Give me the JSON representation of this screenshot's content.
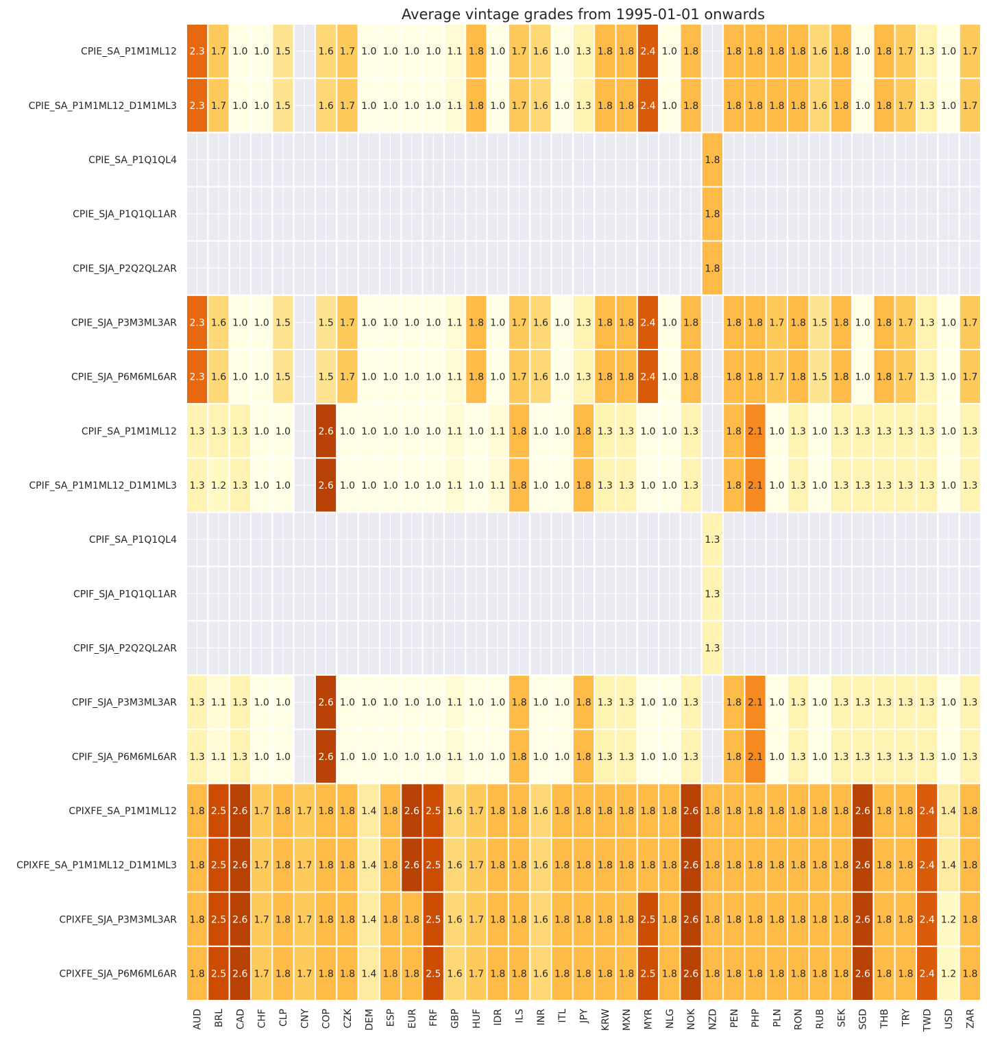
{
  "chart_data": {
    "type": "heatmap",
    "title": "Average vintage grades from 1995-01-01 onwards",
    "xlabel": "",
    "ylabel": "",
    "columns": [
      "AUD",
      "BRL",
      "CAD",
      "CHF",
      "CLP",
      "CNY",
      "COP",
      "CZK",
      "DEM",
      "ESP",
      "EUR",
      "FRF",
      "GBP",
      "HUF",
      "IDR",
      "ILS",
      "INR",
      "ITL",
      "JPY",
      "KRW",
      "MXN",
      "MYR",
      "NLG",
      "NOK",
      "NZD",
      "PEN",
      "PHP",
      "PLN",
      "RON",
      "RUB",
      "SEK",
      "SGD",
      "THB",
      "TRY",
      "TWD",
      "USD",
      "ZAR"
    ],
    "rows": [
      "CPIE_SA_P1M1ML12",
      "CPIE_SA_P1M1ML12_D1M1ML3",
      "CPIE_SA_P1Q1QL4",
      "CPIE_SJA_P1Q1QL1AR",
      "CPIE_SJA_P2Q2QL2AR",
      "CPIE_SJA_P3M3ML3AR",
      "CPIE_SJA_P6M6ML6AR",
      "CPIF_SA_P1M1ML12",
      "CPIF_SA_P1M1ML12_D1M1ML3",
      "CPIF_SA_P1Q1QL4",
      "CPIF_SJA_P1Q1QL1AR",
      "CPIF_SJA_P2Q2QL2AR",
      "CPIF_SJA_P3M3ML3AR",
      "CPIF_SJA_P6M6ML6AR",
      "CPIXFE_SA_P1M1ML12",
      "CPIXFE_SA_P1M1ML12_D1M1ML3",
      "CPIXFE_SJA_P3M3ML3AR",
      "CPIXFE_SJA_P6M6ML6AR"
    ],
    "values": [
      [
        2.3,
        1.7,
        1.0,
        1.0,
        1.5,
        null,
        1.6,
        1.7,
        1.0,
        1.0,
        1.0,
        1.0,
        1.1,
        1.8,
        1.0,
        1.7,
        1.6,
        1.0,
        1.3,
        1.8,
        1.8,
        2.4,
        1.0,
        1.8,
        null,
        1.8,
        1.8,
        1.8,
        1.8,
        1.6,
        1.8,
        1.0,
        1.8,
        1.7,
        1.3,
        1.0,
        1.7
      ],
      [
        2.3,
        1.7,
        1.0,
        1.0,
        1.5,
        null,
        1.6,
        1.7,
        1.0,
        1.0,
        1.0,
        1.0,
        1.1,
        1.8,
        1.0,
        1.7,
        1.6,
        1.0,
        1.3,
        1.8,
        1.8,
        2.4,
        1.0,
        1.8,
        null,
        1.8,
        1.8,
        1.8,
        1.8,
        1.6,
        1.8,
        1.0,
        1.8,
        1.7,
        1.3,
        1.0,
        1.7
      ],
      [
        null,
        null,
        null,
        null,
        null,
        null,
        null,
        null,
        null,
        null,
        null,
        null,
        null,
        null,
        null,
        null,
        null,
        null,
        null,
        null,
        null,
        null,
        null,
        null,
        1.8,
        null,
        null,
        null,
        null,
        null,
        null,
        null,
        null,
        null,
        null,
        null,
        null
      ],
      [
        null,
        null,
        null,
        null,
        null,
        null,
        null,
        null,
        null,
        null,
        null,
        null,
        null,
        null,
        null,
        null,
        null,
        null,
        null,
        null,
        null,
        null,
        null,
        null,
        1.8,
        null,
        null,
        null,
        null,
        null,
        null,
        null,
        null,
        null,
        null,
        null,
        null
      ],
      [
        null,
        null,
        null,
        null,
        null,
        null,
        null,
        null,
        null,
        null,
        null,
        null,
        null,
        null,
        null,
        null,
        null,
        null,
        null,
        null,
        null,
        null,
        null,
        null,
        1.8,
        null,
        null,
        null,
        null,
        null,
        null,
        null,
        null,
        null,
        null,
        null,
        null
      ],
      [
        2.3,
        1.6,
        1.0,
        1.0,
        1.5,
        null,
        1.5,
        1.7,
        1.0,
        1.0,
        1.0,
        1.0,
        1.1,
        1.8,
        1.0,
        1.7,
        1.6,
        1.0,
        1.3,
        1.8,
        1.8,
        2.4,
        1.0,
        1.8,
        null,
        1.8,
        1.8,
        1.7,
        1.8,
        1.5,
        1.8,
        1.0,
        1.8,
        1.7,
        1.3,
        1.0,
        1.7
      ],
      [
        2.3,
        1.6,
        1.0,
        1.0,
        1.5,
        null,
        1.5,
        1.7,
        1.0,
        1.0,
        1.0,
        1.0,
        1.1,
        1.8,
        1.0,
        1.7,
        1.6,
        1.0,
        1.3,
        1.8,
        1.8,
        2.4,
        1.0,
        1.8,
        null,
        1.8,
        1.8,
        1.7,
        1.8,
        1.5,
        1.8,
        1.0,
        1.8,
        1.7,
        1.3,
        1.0,
        1.7
      ],
      [
        1.3,
        1.3,
        1.3,
        1.0,
        1.0,
        null,
        2.6,
        1.0,
        1.0,
        1.0,
        1.0,
        1.0,
        1.1,
        1.0,
        1.1,
        1.8,
        1.0,
        1.0,
        1.8,
        1.3,
        1.3,
        1.0,
        1.0,
        1.3,
        null,
        1.8,
        2.1,
        1.0,
        1.3,
        1.0,
        1.3,
        1.3,
        1.3,
        1.3,
        1.3,
        1.0,
        1.3
      ],
      [
        1.3,
        1.2,
        1.3,
        1.0,
        1.0,
        null,
        2.6,
        1.0,
        1.0,
        1.0,
        1.0,
        1.0,
        1.1,
        1.0,
        1.1,
        1.8,
        1.0,
        1.0,
        1.8,
        1.3,
        1.3,
        1.0,
        1.0,
        1.3,
        null,
        1.8,
        2.1,
        1.0,
        1.3,
        1.0,
        1.3,
        1.3,
        1.3,
        1.3,
        1.3,
        1.0,
        1.3
      ],
      [
        null,
        null,
        null,
        null,
        null,
        null,
        null,
        null,
        null,
        null,
        null,
        null,
        null,
        null,
        null,
        null,
        null,
        null,
        null,
        null,
        null,
        null,
        null,
        null,
        1.3,
        null,
        null,
        null,
        null,
        null,
        null,
        null,
        null,
        null,
        null,
        null,
        null
      ],
      [
        null,
        null,
        null,
        null,
        null,
        null,
        null,
        null,
        null,
        null,
        null,
        null,
        null,
        null,
        null,
        null,
        null,
        null,
        null,
        null,
        null,
        null,
        null,
        null,
        1.3,
        null,
        null,
        null,
        null,
        null,
        null,
        null,
        null,
        null,
        null,
        null,
        null
      ],
      [
        null,
        null,
        null,
        null,
        null,
        null,
        null,
        null,
        null,
        null,
        null,
        null,
        null,
        null,
        null,
        null,
        null,
        null,
        null,
        null,
        null,
        null,
        null,
        null,
        1.3,
        null,
        null,
        null,
        null,
        null,
        null,
        null,
        null,
        null,
        null,
        null,
        null
      ],
      [
        1.3,
        1.1,
        1.3,
        1.0,
        1.0,
        null,
        2.6,
        1.0,
        1.0,
        1.0,
        1.0,
        1.0,
        1.1,
        1.0,
        1.0,
        1.8,
        1.0,
        1.0,
        1.8,
        1.3,
        1.3,
        1.0,
        1.0,
        1.3,
        null,
        1.8,
        2.1,
        1.0,
        1.3,
        1.0,
        1.3,
        1.3,
        1.3,
        1.3,
        1.3,
        1.0,
        1.3
      ],
      [
        1.3,
        1.1,
        1.3,
        1.0,
        1.0,
        null,
        2.6,
        1.0,
        1.0,
        1.0,
        1.0,
        1.0,
        1.1,
        1.0,
        1.0,
        1.8,
        1.0,
        1.0,
        1.8,
        1.3,
        1.3,
        1.0,
        1.0,
        1.3,
        null,
        1.8,
        2.1,
        1.0,
        1.3,
        1.0,
        1.3,
        1.3,
        1.3,
        1.3,
        1.3,
        1.0,
        1.3
      ],
      [
        1.8,
        2.5,
        2.6,
        1.7,
        1.8,
        1.7,
        1.8,
        1.8,
        1.4,
        1.8,
        2.6,
        2.5,
        1.6,
        1.7,
        1.8,
        1.8,
        1.6,
        1.8,
        1.8,
        1.8,
        1.8,
        1.8,
        1.8,
        2.6,
        1.8,
        1.8,
        1.8,
        1.8,
        1.8,
        1.8,
        1.8,
        2.6,
        1.8,
        1.8,
        2.4,
        1.4,
        1.8
      ],
      [
        1.8,
        2.5,
        2.6,
        1.7,
        1.8,
        1.7,
        1.8,
        1.8,
        1.4,
        1.8,
        2.6,
        2.5,
        1.6,
        1.7,
        1.8,
        1.8,
        1.6,
        1.8,
        1.8,
        1.8,
        1.8,
        1.8,
        1.8,
        2.6,
        1.8,
        1.8,
        1.8,
        1.8,
        1.8,
        1.8,
        1.8,
        2.6,
        1.8,
        1.8,
        2.4,
        1.4,
        1.8
      ],
      [
        1.8,
        2.5,
        2.6,
        1.7,
        1.8,
        1.7,
        1.8,
        1.8,
        1.4,
        1.8,
        1.8,
        2.5,
        1.6,
        1.7,
        1.8,
        1.8,
        1.6,
        1.8,
        1.8,
        1.8,
        1.8,
        2.5,
        1.8,
        2.6,
        1.8,
        1.8,
        1.8,
        1.8,
        1.8,
        1.8,
        1.8,
        2.6,
        1.8,
        1.8,
        2.4,
        1.2,
        1.8
      ],
      [
        1.8,
        2.5,
        2.6,
        1.7,
        1.8,
        1.7,
        1.8,
        1.8,
        1.4,
        1.8,
        1.8,
        2.5,
        1.6,
        1.7,
        1.8,
        1.8,
        1.6,
        1.8,
        1.8,
        1.8,
        1.8,
        2.5,
        1.8,
        2.6,
        1.8,
        1.8,
        1.8,
        1.8,
        1.8,
        1.8,
        1.8,
        2.6,
        1.8,
        1.8,
        2.4,
        1.2,
        1.8
      ]
    ],
    "value_range": [
      1.0,
      3.0
    ],
    "colormap": "YlOrBr",
    "missing_color": "#eaeaf2",
    "grid": true,
    "legend": "none"
  }
}
